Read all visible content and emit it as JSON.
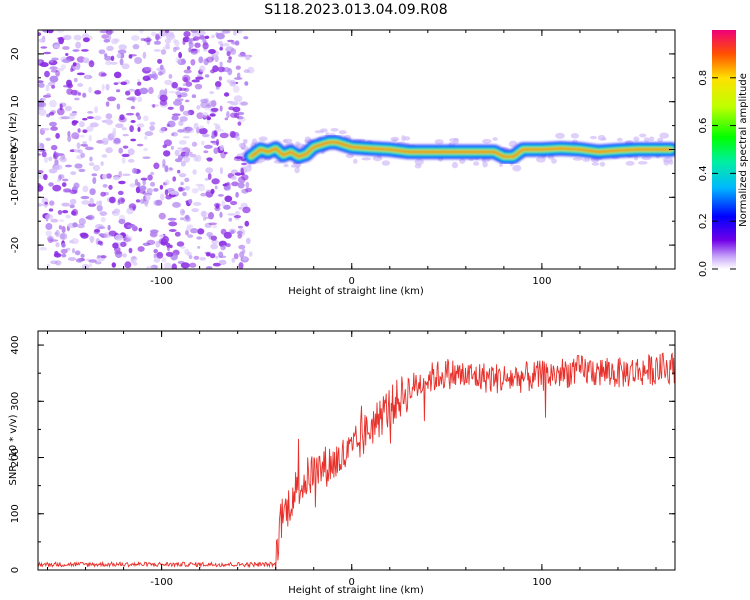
{
  "title": "S118.2023.013.04.09.R08",
  "chart_data": [
    {
      "type": "heatmap",
      "xlabel": "Height of straight line (km)",
      "ylabel": "Frequency (Hz)",
      "xlim": [
        -165,
        170
      ],
      "ylim": [
        -25,
        25
      ],
      "xticks": [
        -100,
        0,
        100
      ],
      "yticks": [
        -20,
        -10,
        0,
        10,
        20
      ],
      "colorbar": {
        "label": "Normalized spectral amplitude",
        "range": [
          0,
          1
        ],
        "ticks": [
          "0.0",
          "0.2",
          "0.4",
          "0.6",
          "0.8"
        ]
      },
      "noise_region_x": [
        -165,
        -53
      ],
      "ridge": {
        "x": [
          -53,
          -48,
          -44,
          -40,
          -36,
          -32,
          -28,
          -24,
          -20,
          -16,
          -12,
          -8,
          -4,
          0,
          10,
          20,
          30,
          40,
          50,
          60,
          70,
          75,
          80,
          85,
          90,
          100,
          110,
          120,
          130,
          140,
          150,
          160,
          168
        ],
        "frequency": [
          -1.5,
          0,
          -0.5,
          0.2,
          -1.2,
          -0.5,
          -1.5,
          -1.0,
          0.5,
          1.0,
          1.5,
          1.5,
          1.0,
          0.5,
          0.2,
          0,
          -0.5,
          -0.5,
          -0.5,
          -0.5,
          -0.5,
          -0.5,
          -1.5,
          -1.5,
          0,
          0,
          0.2,
          0,
          -0.5,
          -0.2,
          0,
          0,
          0
        ]
      }
    },
    {
      "type": "line",
      "xlabel": "Height of straight line (km)",
      "ylabel": "SNR (10 * v/v)",
      "xlim": [
        -165,
        170
      ],
      "ylim": [
        0,
        425
      ],
      "xticks": [
        -100,
        0,
        100
      ],
      "yticks": [
        0,
        100,
        200,
        300,
        400
      ],
      "color": "#e8302a",
      "envelope": {
        "x": [
          -165,
          -40,
          -38,
          -30,
          -20,
          -10,
          0,
          10,
          20,
          30,
          40,
          50,
          60,
          80,
          100,
          120,
          140,
          170
        ],
        "snr": [
          10,
          10,
          80,
          140,
          175,
          190,
          210,
          255,
          290,
          320,
          340,
          350,
          345,
          340,
          345,
          355,
          350,
          360
        ]
      }
    }
  ]
}
